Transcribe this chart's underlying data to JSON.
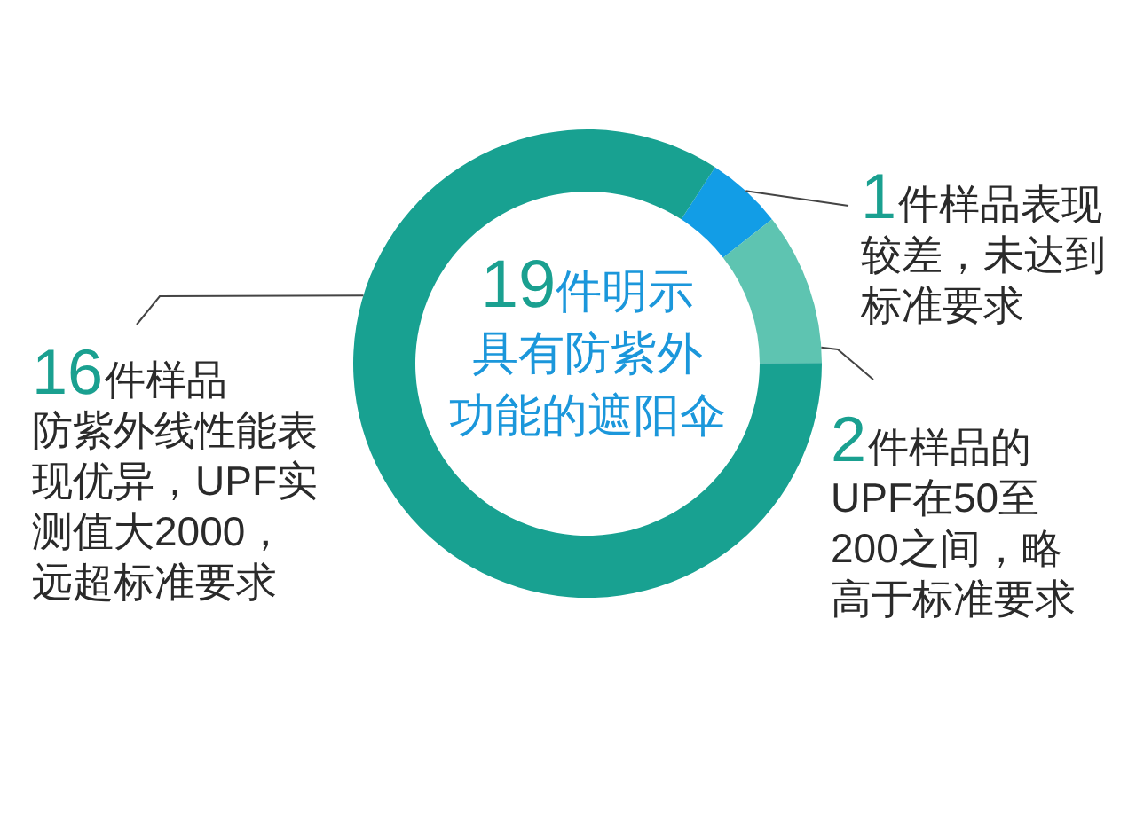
{
  "chart_data": {
    "type": "donut",
    "title": "19件明示具有防紫外功能的遮阳伞",
    "categories": [
      "件样品表现较差，未达到标准要求",
      "件样品的UPF在50至200之间，略高于标准要求",
      "件样品防紫外线性能表现优异，UPF实测值大2000，远超标准要求"
    ],
    "values": [
      1,
      2,
      16
    ],
    "colors": [
      "#129de6",
      "#5ec4b1",
      "#18a191"
    ],
    "data_labels": true
  }
}
